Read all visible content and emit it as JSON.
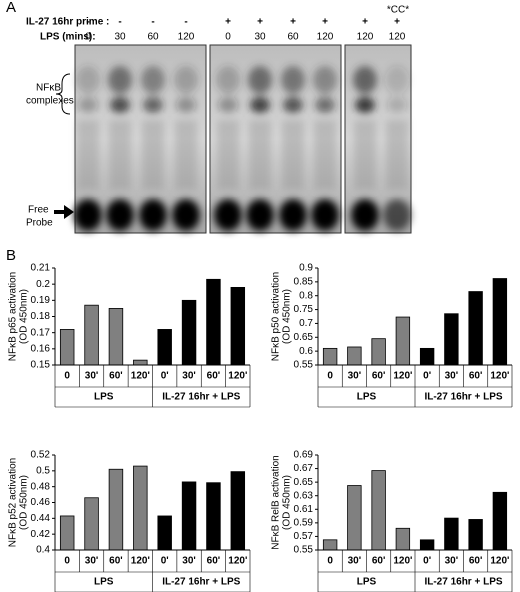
{
  "panel_a": {
    "label": "A",
    "prime_label": "IL-27 16hr prime :",
    "lps_label": "LPS (mins):",
    "cc_label": "*CC*",
    "lanes": [
      {
        "prime": "-",
        "lps": "0"
      },
      {
        "prime": "-",
        "lps": "30"
      },
      {
        "prime": "-",
        "lps": "60"
      },
      {
        "prime": "-",
        "lps": "120"
      },
      {
        "prime": "+",
        "lps": "0"
      },
      {
        "prime": "+",
        "lps": "30"
      },
      {
        "prime": "+",
        "lps": "60"
      },
      {
        "prime": "+",
        "lps": "120"
      },
      {
        "prime": "+",
        "lps": "120"
      },
      {
        "prime": "+",
        "lps": "120"
      }
    ],
    "complex_label": [
      "NFκB",
      "complexes"
    ],
    "probe_label": [
      "Free",
      "Probe"
    ]
  },
  "panel_b_label": "B",
  "chart_data": [
    {
      "type": "bar",
      "y_label": [
        "NFκB p65 activation",
        "(OD 450nm)"
      ],
      "categories": [
        "0",
        "30'",
        "60'",
        "120'",
        "0'",
        "30'",
        "60'",
        "120'"
      ],
      "values": [
        0.172,
        0.187,
        0.185,
        0.153,
        0.172,
        0.19,
        0.203,
        0.198
      ],
      "colors": [
        "#808080",
        "#808080",
        "#808080",
        "#808080",
        "#000000",
        "#000000",
        "#000000",
        "#000000"
      ],
      "groups": [
        "LPS",
        "IL-27 16hr + LPS"
      ],
      "ylim": [
        0.15,
        0.21
      ],
      "yticks": [
        0.15,
        0.16,
        0.17,
        0.18,
        0.19,
        0.2,
        0.21
      ]
    },
    {
      "type": "bar",
      "y_label": [
        "NFκB p50 activation",
        "(OD 450nm)"
      ],
      "categories": [
        "0",
        "30'",
        "60'",
        "120'",
        "0'",
        "30'",
        "60'",
        "120'"
      ],
      "values": [
        0.61,
        0.615,
        0.645,
        0.723,
        0.61,
        0.735,
        0.815,
        0.862
      ],
      "colors": [
        "#808080",
        "#808080",
        "#808080",
        "#808080",
        "#000000",
        "#000000",
        "#000000",
        "#000000"
      ],
      "groups": [
        "LPS",
        "IL-27 16hr + LPS"
      ],
      "ylim": [
        0.55,
        0.9
      ],
      "yticks": [
        0.55,
        0.6,
        0.65,
        0.7,
        0.75,
        0.8,
        0.85,
        0.9
      ]
    },
    {
      "type": "bar",
      "y_label": [
        "NFκB p52 activation",
        "(OD 450nm)"
      ],
      "categories": [
        "0",
        "30'",
        "60'",
        "120'",
        "0'",
        "30'",
        "60'",
        "120'"
      ],
      "values": [
        0.443,
        0.466,
        0.502,
        0.506,
        0.443,
        0.486,
        0.485,
        0.499
      ],
      "colors": [
        "#808080",
        "#808080",
        "#808080",
        "#808080",
        "#000000",
        "#000000",
        "#000000",
        "#000000"
      ],
      "groups": [
        "LPS",
        "IL-27 16hr + LPS"
      ],
      "ylim": [
        0.4,
        0.52
      ],
      "yticks": [
        0.4,
        0.42,
        0.44,
        0.46,
        0.48,
        0.5,
        0.52
      ]
    },
    {
      "type": "bar",
      "y_label": [
        "NFκB RelB activation",
        "(OD 450nm)"
      ],
      "categories": [
        "0",
        "30'",
        "60'",
        "120'",
        "0'",
        "30'",
        "60'",
        "120'"
      ],
      "values": [
        0.565,
        0.645,
        0.667,
        0.582,
        0.565,
        0.597,
        0.595,
        0.635
      ],
      "colors": [
        "#808080",
        "#808080",
        "#808080",
        "#808080",
        "#000000",
        "#000000",
        "#000000",
        "#000000"
      ],
      "groups": [
        "LPS",
        "IL-27 16hr + LPS"
      ],
      "ylim": [
        0.55,
        0.69
      ],
      "yticks": [
        0.55,
        0.57,
        0.59,
        0.61,
        0.63,
        0.65,
        0.67,
        0.69
      ]
    }
  ]
}
